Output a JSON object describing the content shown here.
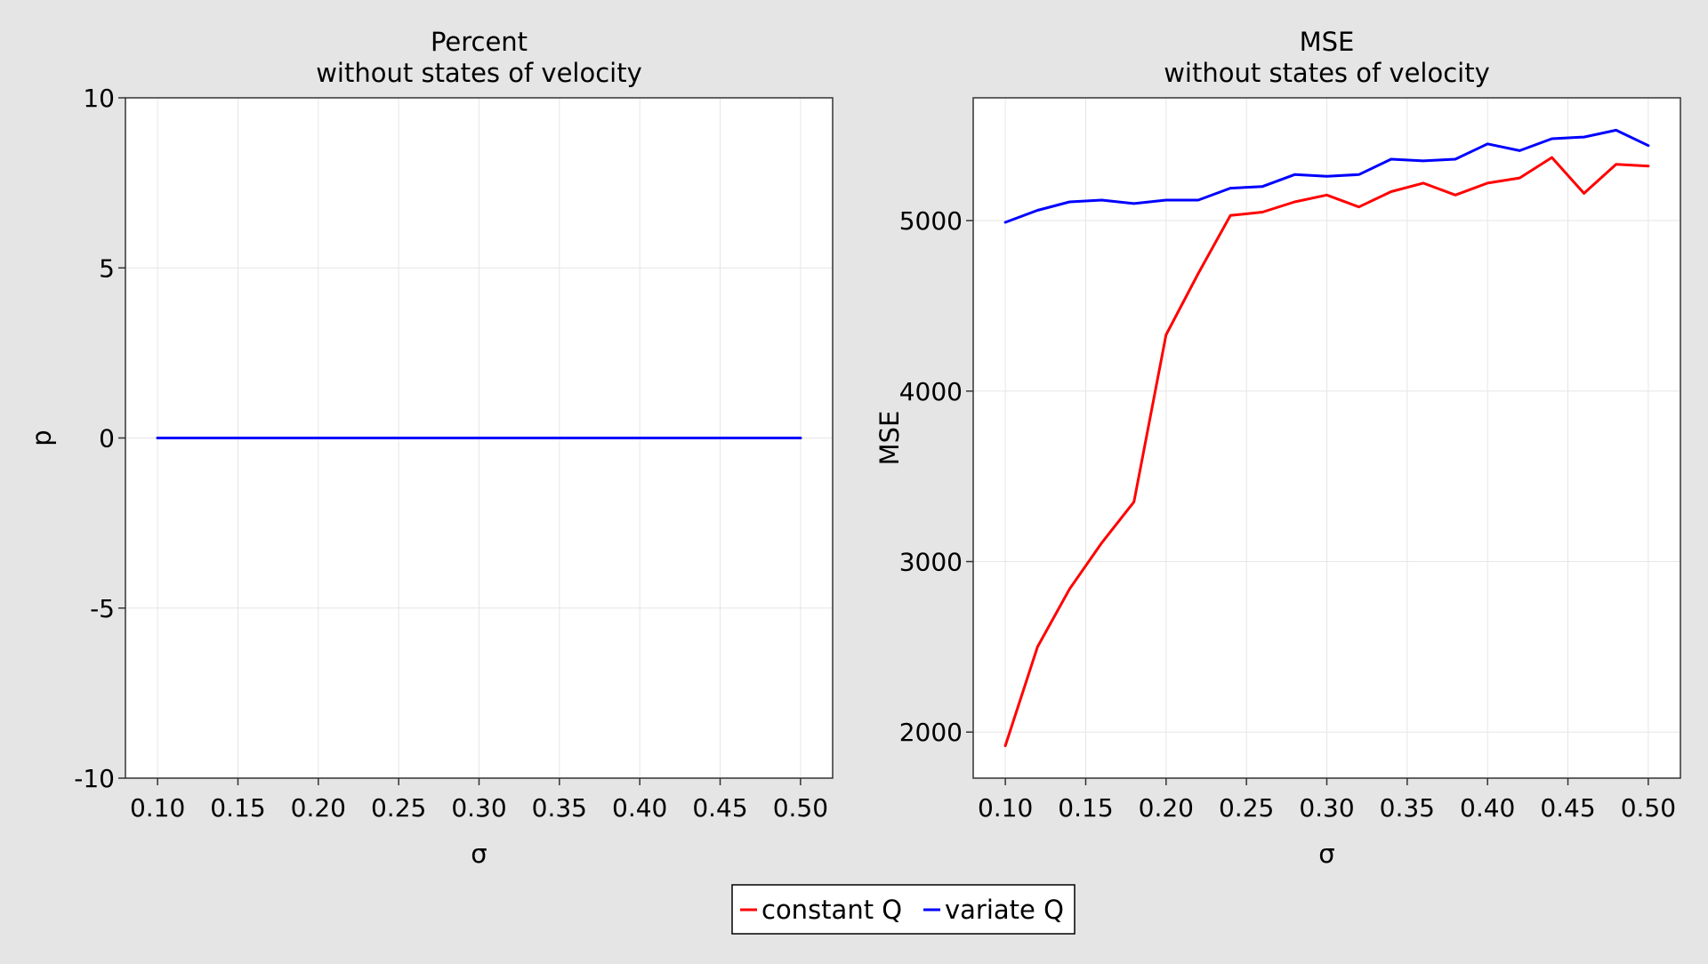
{
  "chart_data": [
    {
      "type": "line",
      "title": "Percent",
      "subtitle": "without states of velocity",
      "xlabel": "σ",
      "ylabel": "p",
      "x": [
        0.1,
        0.12,
        0.14,
        0.16,
        0.18,
        0.2,
        0.22,
        0.24,
        0.26,
        0.28,
        0.3,
        0.32,
        0.34,
        0.36,
        0.38,
        0.4,
        0.42,
        0.44,
        0.46,
        0.48,
        0.5
      ],
      "xlim": [
        0.08,
        0.52
      ],
      "ylim": [
        -10,
        10
      ],
      "xticks": [
        0.1,
        0.15,
        0.2,
        0.25,
        0.3,
        0.35,
        0.4,
        0.45,
        0.5
      ],
      "xtick_labels": [
        "0.10",
        "0.15",
        "0.20",
        "0.25",
        "0.30",
        "0.35",
        "0.40",
        "0.45",
        "0.50"
      ],
      "yticks": [
        -10,
        -5,
        0,
        5,
        10
      ],
      "ytick_labels": [
        "-10",
        "-5",
        "0",
        "5",
        "10"
      ],
      "grid": true,
      "series": [
        {
          "name": "constant Q",
          "color": "#ff0000",
          "values": [
            0,
            0,
            0,
            0,
            0,
            0,
            0,
            0,
            0,
            0,
            0,
            0,
            0,
            0,
            0,
            0,
            0,
            0,
            0,
            0,
            0
          ]
        },
        {
          "name": "variate Q",
          "color": "#0000ff",
          "values": [
            0,
            0,
            0,
            0,
            0,
            0,
            0,
            0,
            0,
            0,
            0,
            0,
            0,
            0,
            0,
            0,
            0,
            0,
            0,
            0,
            0
          ]
        }
      ]
    },
    {
      "type": "line",
      "title": "MSE",
      "subtitle": "without states of velocity",
      "xlabel": "σ",
      "ylabel": "MSE",
      "x": [
        0.1,
        0.12,
        0.14,
        0.16,
        0.18,
        0.2,
        0.22,
        0.24,
        0.26,
        0.28,
        0.3,
        0.32,
        0.34,
        0.36,
        0.38,
        0.4,
        0.42,
        0.44,
        0.46,
        0.48,
        0.5
      ],
      "xlim": [
        0.08,
        0.52
      ],
      "ylim": [
        1730,
        5720
      ],
      "xticks": [
        0.1,
        0.15,
        0.2,
        0.25,
        0.3,
        0.35,
        0.4,
        0.45,
        0.5
      ],
      "xtick_labels": [
        "0.10",
        "0.15",
        "0.20",
        "0.25",
        "0.30",
        "0.35",
        "0.40",
        "0.45",
        "0.50"
      ],
      "yticks": [
        2000,
        3000,
        4000,
        5000
      ],
      "ytick_labels": [
        "2000",
        "3000",
        "4000",
        "5000"
      ],
      "grid": true,
      "series": [
        {
          "name": "constant Q",
          "color": "#ff0000",
          "values": [
            1920,
            2500,
            2840,
            3110,
            3350,
            4330,
            4690,
            5030,
            5050,
            5110,
            5150,
            5080,
            5170,
            5220,
            5150,
            5220,
            5250,
            5370,
            5160,
            5330,
            5320
          ]
        },
        {
          "name": "variate Q",
          "color": "#0000ff",
          "values": [
            4990,
            5060,
            5110,
            5120,
            5100,
            5120,
            5120,
            5190,
            5200,
            5270,
            5260,
            5270,
            5360,
            5350,
            5360,
            5450,
            5410,
            5480,
            5490,
            5530,
            5440
          ]
        }
      ]
    }
  ],
  "legend": {
    "placement": "bottom-center",
    "items": [
      {
        "label": "constant Q",
        "color": "#ff0000"
      },
      {
        "label": "variate Q",
        "color": "#0000ff"
      }
    ]
  }
}
